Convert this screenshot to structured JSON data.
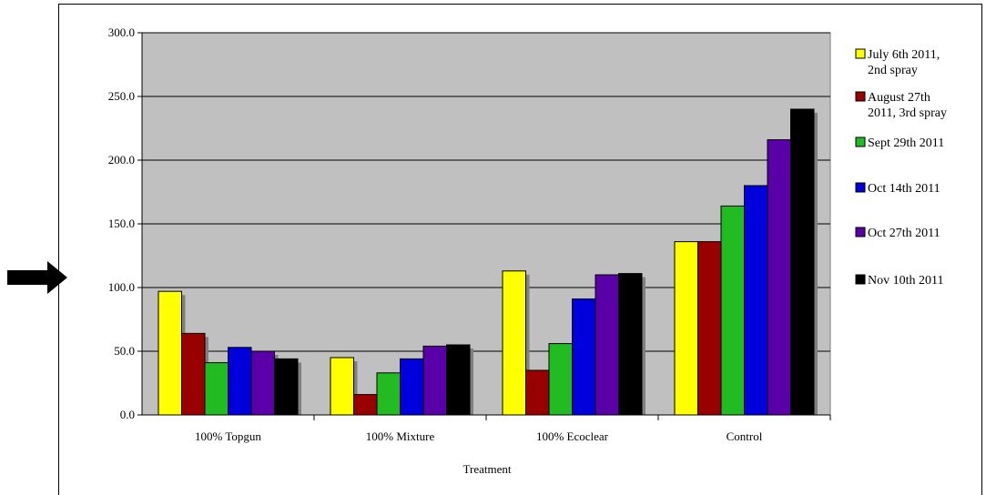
{
  "chart_data": {
    "type": "bar",
    "title": "",
    "xlabel": "Treatment",
    "ylabel": "",
    "ylim": [
      0,
      300
    ],
    "yticks": [
      "0.0",
      "50.0",
      "100.0",
      "150.0",
      "200.0",
      "250.0",
      "300.0"
    ],
    "categories": [
      "100% Topgun",
      "100% Mixture",
      "100% Ecoclear",
      "Control"
    ],
    "grid": true,
    "legend_position": "right",
    "plot_background": "#c0c0c0",
    "series": [
      {
        "name": "July 6th 2011, 2nd spray",
        "name_lines": [
          "July 6th 2011,",
          "2nd spray"
        ],
        "color": "#ffff00",
        "values": [
          97,
          45,
          113,
          136
        ]
      },
      {
        "name": "August 27th 2011, 3rd spray",
        "name_lines": [
          "August 27th",
          "2011, 3rd spray"
        ],
        "color": "#990000",
        "values": [
          64,
          16,
          35,
          136
        ]
      },
      {
        "name": "Sept 29th 2011",
        "name_lines": [
          "Sept 29th 2011"
        ],
        "color": "#22bb22",
        "values": [
          41,
          33,
          56,
          164
        ]
      },
      {
        "name": "Oct 14th 2011",
        "name_lines": [
          "Oct 14th 2011"
        ],
        "color": "#0000dd",
        "values": [
          53,
          44,
          91,
          180
        ]
      },
      {
        "name": "Oct 27th 2011",
        "name_lines": [
          "Oct 27th 2011"
        ],
        "color": "#5a00a8",
        "values": [
          50,
          54,
          110,
          216
        ]
      },
      {
        "name": "Nov 10th 2011",
        "name_lines": [
          "Nov 10th 2011"
        ],
        "color": "#000000",
        "values": [
          44,
          55,
          111,
          240
        ]
      }
    ]
  }
}
